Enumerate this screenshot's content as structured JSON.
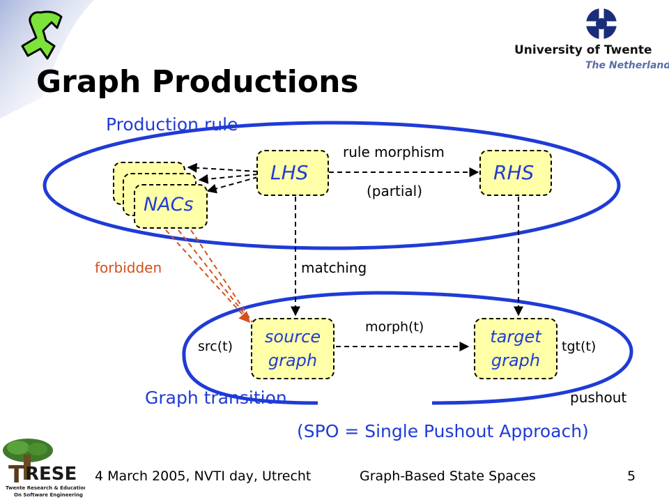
{
  "title": "Graph Productions",
  "university": {
    "name": "University of Twente",
    "country": "The Netherlands"
  },
  "diagram": {
    "production_rule_label": "Production rule",
    "graph_transition_label": "Graph transition",
    "nodes": {
      "nacs": "NACs",
      "lhs": "LHS",
      "rhs": "RHS",
      "source_graph": "source\ngraph",
      "target_graph": "target\ngraph"
    },
    "edges": {
      "rule_morphism": "rule morphism",
      "partial": "(partial)",
      "matching": "matching",
      "forbidden": "forbidden",
      "morph": "morph(t)",
      "src": "src(t)",
      "tgt": "tgt(t)"
    },
    "pushout": "pushout",
    "spo_note": "(SPO = Single Pushout Approach)"
  },
  "footer": {
    "date_place": "4 March 2005, NVTI day, Utrecht",
    "talk_title": "Graph-Based State Spaces",
    "page_number": "5"
  },
  "colors": {
    "accent_blue": "#1f3bd6",
    "node_fill": "#ffffa8",
    "forbidden_red": "#d4501c",
    "corner_gradient": "#a9b6dc"
  }
}
